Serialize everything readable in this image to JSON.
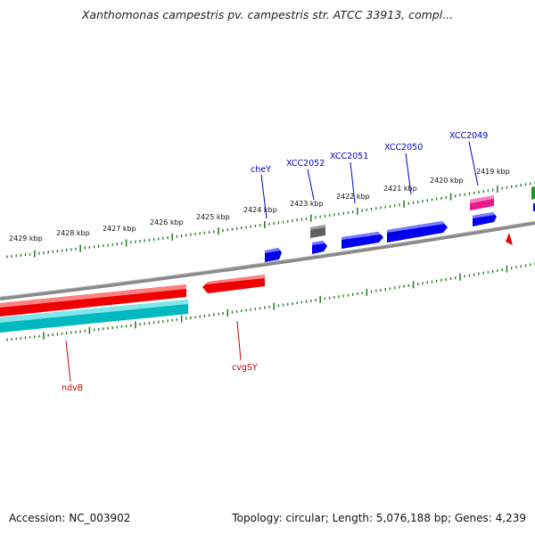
{
  "header": {
    "title": "Xanthomonas campestris pv. campestris str. ATCC 33913, compl..."
  },
  "footer": {
    "accession": "Accession: NC_003902",
    "summary": "Topology: circular; Length: 5,076,188 bp; Genes: 4,239"
  },
  "scale": {
    "kbp_labels": [
      "2429 kbp",
      "2428 kbp",
      "2427 kbp",
      "2426 kbp",
      "2425 kbp",
      "2424 kbp",
      "2423 kbp",
      "2422 kbp",
      "2421 kbp",
      "2420 kbp",
      "2419 kbp"
    ]
  },
  "gene_labels": {
    "top": [
      "cheY",
      "XCC2052",
      "XCC2051",
      "XCC2050",
      "XCC2049"
    ],
    "bottom": [
      "ndvB",
      "cvgSY"
    ]
  },
  "colors": {
    "background": "#ffffff",
    "backbone": "#808080",
    "tick": "#2e7d2e",
    "forward_cds": "#0000ee",
    "forward_highlight": "#e8198b",
    "forward_other": "#606060",
    "reverse_cds": "#ee0000",
    "reverse_other": "#00b8c0",
    "label_top": "#0000cc",
    "label_bottom": "#cc0000",
    "right_edge_feature": "#1a9a1a"
  }
}
